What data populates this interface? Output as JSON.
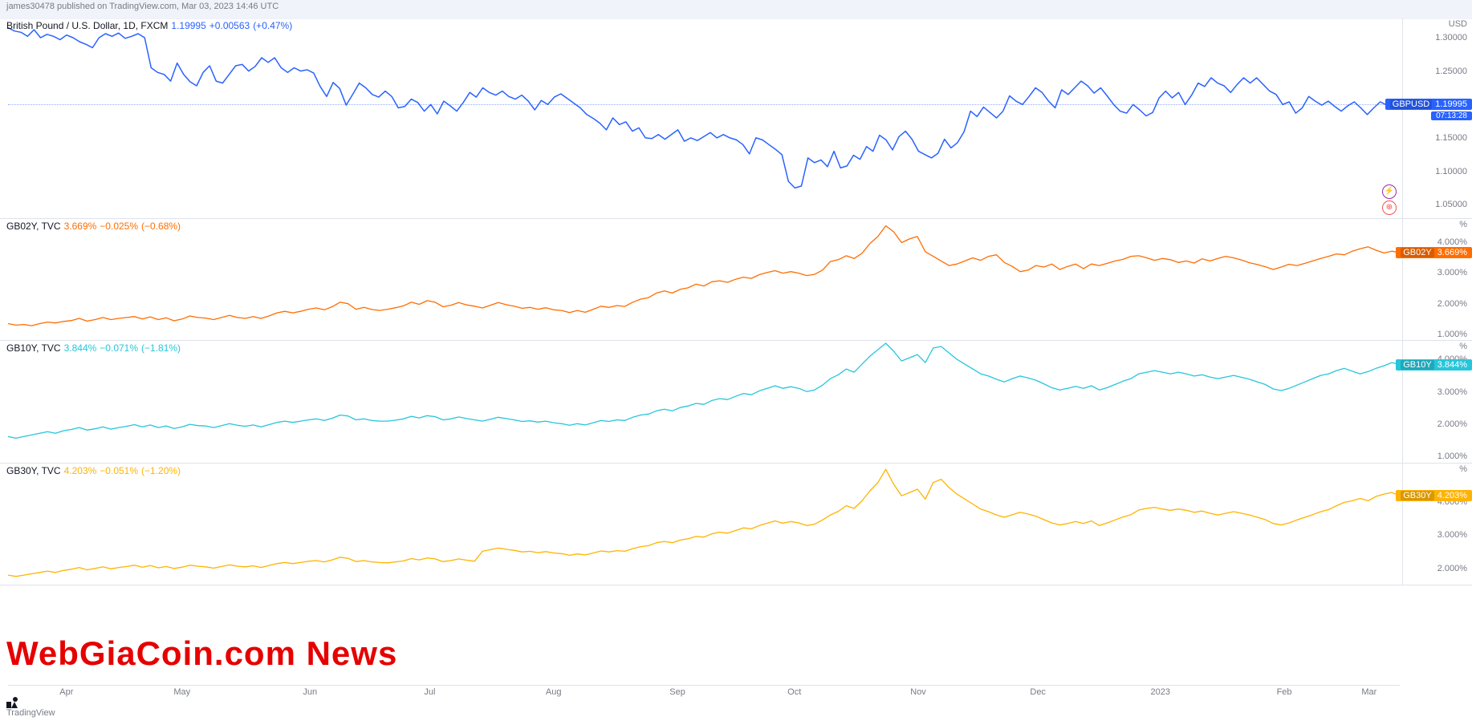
{
  "header": {
    "publish_text": "james30478 published on TradingView.com, Mar 03, 2023 14:46 UTC"
  },
  "footer": {
    "brand": "TradingView"
  },
  "watermark": {
    "text": "WebGiaCoin.com News"
  },
  "time_axis": {
    "labels": [
      "Apr",
      "May",
      "Jun",
      "Jul",
      "Aug",
      "Sep",
      "Oct",
      "Nov",
      "Dec",
      "2023",
      "Feb",
      "Mar"
    ],
    "positions": [
      0.042,
      0.125,
      0.217,
      0.303,
      0.392,
      0.481,
      0.565,
      0.654,
      0.74,
      0.828,
      0.917,
      0.978
    ]
  },
  "panes": [
    {
      "id": "gbpusd",
      "top_pct": 0,
      "height_pct": 0.3,
      "legend": {
        "text_main": "British Pound / U.S. Dollar, 1D, FXCM",
        "color_main": "#131722",
        "value": "1.19995",
        "change": "+0.00563",
        "change_pct": "(+0.47%)",
        "value_color": "#2962ff"
      },
      "axis": {
        "unit": "USD",
        "min": 1.03,
        "max": 1.33,
        "ticks": [
          1.05,
          1.1,
          1.15,
          1.2,
          1.25,
          1.3
        ],
        "tick_fmt": "fixed5"
      },
      "line": {
        "color": "#2962ff",
        "width": 1.5,
        "current_value": 1.19995,
        "tag_symbol": "GBPUSD",
        "tag_value": "1.19995",
        "countdown": "07:13:28",
        "show_hline": true,
        "data": [
          1.315,
          1.31,
          1.308,
          1.302,
          1.312,
          1.3,
          1.305,
          1.302,
          1.297,
          1.304,
          1.3,
          1.294,
          1.29,
          1.285,
          1.3,
          1.306,
          1.302,
          1.307,
          1.299,
          1.302,
          1.306,
          1.3,
          1.255,
          1.248,
          1.245,
          1.235,
          1.262,
          1.245,
          1.234,
          1.228,
          1.248,
          1.258,
          1.235,
          1.232,
          1.245,
          1.258,
          1.26,
          1.25,
          1.257,
          1.27,
          1.263,
          1.27,
          1.255,
          1.248,
          1.255,
          1.25,
          1.252,
          1.247,
          1.227,
          1.212,
          1.233,
          1.224,
          1.199,
          1.215,
          1.232,
          1.225,
          1.215,
          1.211,
          1.22,
          1.212,
          1.195,
          1.197,
          1.208,
          1.203,
          1.19,
          1.2,
          1.186,
          1.205,
          1.198,
          1.19,
          1.203,
          1.218,
          1.211,
          1.225,
          1.218,
          1.214,
          1.22,
          1.212,
          1.208,
          1.214,
          1.205,
          1.192,
          1.206,
          1.2,
          1.211,
          1.216,
          1.209,
          1.202,
          1.195,
          1.185,
          1.179,
          1.172,
          1.162,
          1.18,
          1.17,
          1.174,
          1.16,
          1.165,
          1.15,
          1.149,
          1.155,
          1.148,
          1.155,
          1.162,
          1.145,
          1.15,
          1.146,
          1.152,
          1.158,
          1.15,
          1.155,
          1.15,
          1.147,
          1.14,
          1.126,
          1.15,
          1.147,
          1.14,
          1.133,
          1.125,
          1.085,
          1.075,
          1.078,
          1.12,
          1.113,
          1.117,
          1.107,
          1.13,
          1.105,
          1.108,
          1.124,
          1.118,
          1.137,
          1.13,
          1.154,
          1.147,
          1.132,
          1.152,
          1.16,
          1.148,
          1.13,
          1.125,
          1.12,
          1.127,
          1.148,
          1.135,
          1.143,
          1.159,
          1.19,
          1.182,
          1.196,
          1.188,
          1.18,
          1.19,
          1.213,
          1.205,
          1.2,
          1.212,
          1.225,
          1.218,
          1.205,
          1.195,
          1.222,
          1.215,
          1.225,
          1.235,
          1.228,
          1.217,
          1.225,
          1.213,
          1.2,
          1.19,
          1.187,
          1.2,
          1.192,
          1.183,
          1.188,
          1.21,
          1.22,
          1.21,
          1.218,
          1.2,
          1.214,
          1.232,
          1.227,
          1.24,
          1.232,
          1.228,
          1.218,
          1.23,
          1.24,
          1.232,
          1.24,
          1.23,
          1.22,
          1.215,
          1.2,
          1.204,
          1.187,
          1.195,
          1.212,
          1.205,
          1.199,
          1.205,
          1.197,
          1.19,
          1.198,
          1.204,
          1.195,
          1.185,
          1.195,
          1.204,
          1.199,
          1.195,
          1.2
        ]
      }
    },
    {
      "id": "gb02y",
      "top_pct": 0.3,
      "height_pct": 0.183,
      "legend": {
        "text_main": "GB02Y, TVC",
        "color_main": "#131722",
        "value": "3.669%",
        "change": "−0.025%",
        "change_pct": "(−0.68%)",
        "value_color": "#ff6d00"
      },
      "axis": {
        "unit": "%",
        "min": 0.8,
        "max": 4.8,
        "ticks": [
          1.0,
          2.0,
          3.0,
          4.0
        ],
        "tick_fmt": "pct3"
      },
      "line": {
        "color": "#ff6d00",
        "width": 1.3,
        "current_value": 3.669,
        "tag_symbol": "GB02Y",
        "tag_value": "3.669%",
        "data": [
          1.35,
          1.3,
          1.32,
          1.28,
          1.35,
          1.4,
          1.37,
          1.42,
          1.45,
          1.52,
          1.43,
          1.48,
          1.55,
          1.48,
          1.52,
          1.55,
          1.58,
          1.5,
          1.57,
          1.48,
          1.54,
          1.44,
          1.5,
          1.6,
          1.55,
          1.53,
          1.48,
          1.55,
          1.62,
          1.55,
          1.52,
          1.58,
          1.52,
          1.6,
          1.7,
          1.75,
          1.7,
          1.75,
          1.82,
          1.86,
          1.8,
          1.9,
          2.05,
          2.0,
          1.82,
          1.88,
          1.81,
          1.78,
          1.82,
          1.87,
          1.93,
          2.05,
          1.98,
          2.1,
          2.05,
          1.9,
          1.95,
          2.04,
          1.96,
          1.92,
          1.86,
          1.95,
          2.04,
          1.97,
          1.92,
          1.85,
          1.88,
          1.82,
          1.87,
          1.8,
          1.78,
          1.71,
          1.78,
          1.72,
          1.82,
          1.92,
          1.88,
          1.94,
          1.91,
          2.05,
          2.15,
          2.2,
          2.35,
          2.42,
          2.35,
          2.47,
          2.52,
          2.64,
          2.58,
          2.72,
          2.75,
          2.7,
          2.8,
          2.87,
          2.83,
          2.95,
          3.02,
          3.08,
          3.0,
          3.05,
          3.0,
          2.92,
          2.96,
          3.1,
          3.38,
          3.44,
          3.57,
          3.48,
          3.65,
          3.97,
          4.2,
          4.55,
          4.35,
          4.0,
          4.12,
          4.2,
          3.7,
          3.55,
          3.4,
          3.25,
          3.3,
          3.4,
          3.5,
          3.42,
          3.55,
          3.6,
          3.35,
          3.22,
          3.05,
          3.1,
          3.25,
          3.2,
          3.3,
          3.12,
          3.22,
          3.3,
          3.15,
          3.3,
          3.25,
          3.32,
          3.4,
          3.45,
          3.55,
          3.57,
          3.5,
          3.42,
          3.48,
          3.44,
          3.35,
          3.4,
          3.33,
          3.47,
          3.4,
          3.48,
          3.55,
          3.5,
          3.43,
          3.34,
          3.28,
          3.21,
          3.12,
          3.2,
          3.29,
          3.25,
          3.32,
          3.4,
          3.48,
          3.55,
          3.63,
          3.6,
          3.72,
          3.8,
          3.86,
          3.75,
          3.66,
          3.72,
          3.67
        ]
      }
    },
    {
      "id": "gb10y",
      "top_pct": 0.483,
      "height_pct": 0.183,
      "legend": {
        "text_main": "GB10Y, TVC",
        "color_main": "#131722",
        "value": "3.844%",
        "change": "−0.071%",
        "change_pct": "(−1.81%)",
        "value_color": "#26c6da"
      },
      "axis": {
        "unit": "%",
        "min": 0.8,
        "max": 4.6,
        "ticks": [
          1.0,
          2.0,
          3.0,
          4.0
        ],
        "tick_fmt": "pct3"
      },
      "line": {
        "color": "#26c6da",
        "width": 1.3,
        "current_value": 3.844,
        "tag_symbol": "GB10Y",
        "tag_value": "3.844%",
        "data": [
          1.6,
          1.55,
          1.6,
          1.65,
          1.7,
          1.75,
          1.7,
          1.78,
          1.82,
          1.88,
          1.8,
          1.84,
          1.9,
          1.83,
          1.88,
          1.92,
          1.97,
          1.9,
          1.96,
          1.88,
          1.93,
          1.85,
          1.9,
          1.98,
          1.94,
          1.93,
          1.88,
          1.94,
          2.0,
          1.95,
          1.92,
          1.96,
          1.9,
          1.97,
          2.04,
          2.08,
          2.04,
          2.08,
          2.12,
          2.15,
          2.1,
          2.17,
          2.27,
          2.24,
          2.12,
          2.15,
          2.1,
          2.08,
          2.08,
          2.11,
          2.15,
          2.23,
          2.18,
          2.25,
          2.22,
          2.12,
          2.15,
          2.21,
          2.16,
          2.12,
          2.08,
          2.14,
          2.2,
          2.16,
          2.12,
          2.07,
          2.09,
          2.05,
          2.08,
          2.03,
          2.0,
          1.95,
          2.0,
          1.96,
          2.03,
          2.1,
          2.07,
          2.12,
          2.1,
          2.2,
          2.27,
          2.3,
          2.4,
          2.45,
          2.4,
          2.5,
          2.55,
          2.63,
          2.6,
          2.72,
          2.78,
          2.75,
          2.85,
          2.94,
          2.9,
          3.02,
          3.1,
          3.18,
          3.1,
          3.15,
          3.1,
          3.0,
          3.05,
          3.2,
          3.4,
          3.52,
          3.7,
          3.6,
          3.85,
          4.1,
          4.3,
          4.5,
          4.25,
          3.95,
          4.05,
          4.15,
          3.9,
          4.35,
          4.4,
          4.2,
          4.0,
          3.85,
          3.7,
          3.55,
          3.48,
          3.38,
          3.3,
          3.4,
          3.48,
          3.42,
          3.35,
          3.24,
          3.12,
          3.05,
          3.1,
          3.16,
          3.1,
          3.18,
          3.05,
          3.12,
          3.22,
          3.32,
          3.4,
          3.55,
          3.6,
          3.65,
          3.6,
          3.55,
          3.6,
          3.55,
          3.48,
          3.52,
          3.45,
          3.4,
          3.45,
          3.5,
          3.44,
          3.38,
          3.3,
          3.22,
          3.08,
          3.03,
          3.1,
          3.2,
          3.3,
          3.4,
          3.5,
          3.55,
          3.65,
          3.72,
          3.63,
          3.55,
          3.62,
          3.72,
          3.8,
          3.9,
          3.84
        ]
      }
    },
    {
      "id": "gb30y",
      "top_pct": 0.666,
      "height_pct": 0.183,
      "legend": {
        "text_main": "GB30Y, TVC",
        "color_main": "#131722",
        "value": "4.203%",
        "change": "−0.051%",
        "change_pct": "(−1.20%)",
        "value_color": "#ffb300"
      },
      "axis": {
        "unit": "%",
        "min": 1.5,
        "max": 5.2,
        "ticks": [
          2.0,
          3.0,
          4.0
        ],
        "tick_fmt": "pct3"
      },
      "line": {
        "color": "#ffb300",
        "width": 1.3,
        "current_value": 4.203,
        "tag_symbol": "GB30Y",
        "tag_value": "4.203%",
        "data": [
          1.8,
          1.76,
          1.8,
          1.84,
          1.88,
          1.92,
          1.88,
          1.94,
          1.98,
          2.03,
          1.96,
          2.0,
          2.05,
          1.99,
          2.03,
          2.06,
          2.1,
          2.04,
          2.09,
          2.02,
          2.06,
          2.0,
          2.04,
          2.1,
          2.07,
          2.05,
          2.01,
          2.06,
          2.11,
          2.07,
          2.05,
          2.08,
          2.03,
          2.09,
          2.15,
          2.18,
          2.15,
          2.18,
          2.22,
          2.24,
          2.2,
          2.26,
          2.34,
          2.31,
          2.21,
          2.24,
          2.2,
          2.18,
          2.17,
          2.2,
          2.23,
          2.3,
          2.26,
          2.32,
          2.29,
          2.21,
          2.24,
          2.29,
          2.25,
          2.22,
          2.52,
          2.57,
          2.62,
          2.58,
          2.55,
          2.5,
          2.52,
          2.48,
          2.51,
          2.47,
          2.45,
          2.4,
          2.44,
          2.41,
          2.47,
          2.53,
          2.5,
          2.54,
          2.52,
          2.6,
          2.66,
          2.69,
          2.78,
          2.82,
          2.78,
          2.86,
          2.9,
          2.97,
          2.95,
          3.05,
          3.1,
          3.07,
          3.15,
          3.23,
          3.2,
          3.3,
          3.37,
          3.44,
          3.37,
          3.42,
          3.38,
          3.3,
          3.34,
          3.47,
          3.62,
          3.73,
          3.9,
          3.82,
          4.05,
          4.35,
          4.6,
          5.0,
          4.55,
          4.2,
          4.3,
          4.4,
          4.1,
          4.6,
          4.7,
          4.45,
          4.25,
          4.1,
          3.95,
          3.8,
          3.72,
          3.62,
          3.55,
          3.63,
          3.7,
          3.65,
          3.58,
          3.48,
          3.38,
          3.32,
          3.36,
          3.42,
          3.36,
          3.44,
          3.3,
          3.38,
          3.47,
          3.56,
          3.63,
          3.77,
          3.82,
          3.85,
          3.8,
          3.76,
          3.8,
          3.76,
          3.7,
          3.74,
          3.67,
          3.62,
          3.67,
          3.72,
          3.67,
          3.62,
          3.55,
          3.48,
          3.36,
          3.32,
          3.38,
          3.47,
          3.55,
          3.63,
          3.72,
          3.78,
          3.9,
          4.0,
          4.05,
          4.12,
          4.05,
          4.18,
          4.25,
          4.3,
          4.2
        ]
      }
    }
  ]
}
